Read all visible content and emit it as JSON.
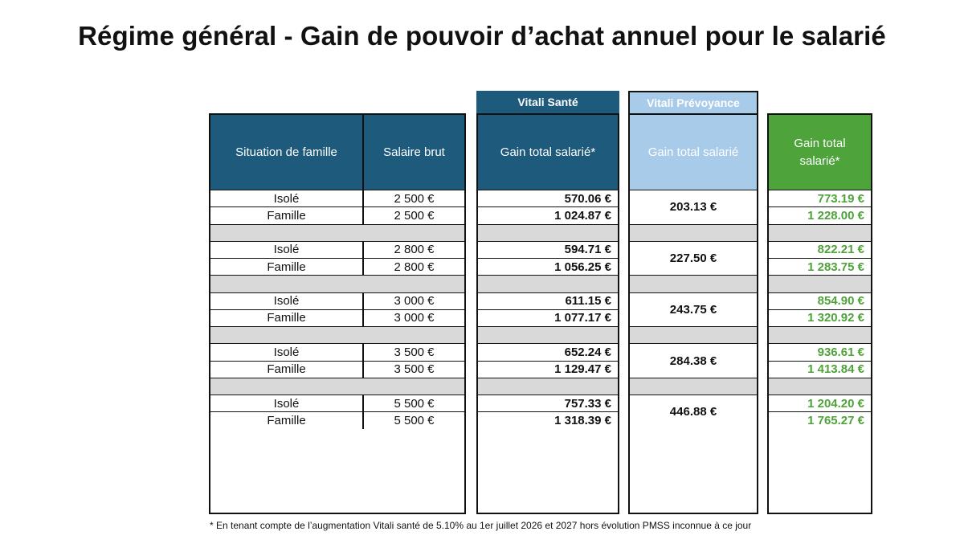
{
  "title": "Régime général - Gain de pouvoir d’achat annuel pour le salarié",
  "group_labels": {
    "sante": "Vitali Santé",
    "prevoyance": "Vitali Prévoyance"
  },
  "headers": {
    "situation": "Situation de famille",
    "salaire": "Salaire brut",
    "gain_sante": "Gain total salarié*",
    "gain_prevoyance": "Gain total salarié",
    "gain_total": "Gain total salarié*"
  },
  "colors": {
    "dark_blue": "#1d5a7c",
    "light_blue": "#a8cbea",
    "green": "#4ea33a",
    "separator_gray": "#d9d9d9"
  },
  "groups": [
    {
      "salaire": "2 500 €",
      "prevoyance": "203.13 €",
      "rows": [
        {
          "situation": "Isolé",
          "sante": "570.06 €",
          "total": "773.19 €"
        },
        {
          "situation": "Famille",
          "sante": "1 024.87 €",
          "total": "1 228.00 €"
        }
      ]
    },
    {
      "salaire": "2 800 €",
      "prevoyance": "227.50 €",
      "rows": [
        {
          "situation": "Isolé",
          "sante": "594.71 €",
          "total": "822.21 €"
        },
        {
          "situation": "Famille",
          "sante": "1 056.25 €",
          "total": "1 283.75 €"
        }
      ]
    },
    {
      "salaire": "3 000 €",
      "prevoyance": "243.75 €",
      "rows": [
        {
          "situation": "Isolé",
          "sante": "611.15 €",
          "total": "854.90 €"
        },
        {
          "situation": "Famille",
          "sante": "1 077.17 €",
          "total": "1 320.92 €"
        }
      ]
    },
    {
      "salaire": "3 500 €",
      "prevoyance": "284.38 €",
      "rows": [
        {
          "situation": "Isolé",
          "sante": "652.24 €",
          "total": "936.61 €"
        },
        {
          "situation": "Famille",
          "sante": "1 129.47 €",
          "total": "1 413.84 €"
        }
      ]
    },
    {
      "salaire": "5 500 €",
      "prevoyance": "446.88 €",
      "rows": [
        {
          "situation": "Isolé",
          "sante": "757.33 €",
          "total": "1 204.20 €"
        },
        {
          "situation": "Famille",
          "sante": "1 318.39 €",
          "total": "1 765.27 €"
        }
      ]
    }
  ],
  "footnote": "* En tenant compte de l’augmentation Vitali santé de 5.10% au 1er juillet 2026 et 2027 hors évolution PMSS inconnue à ce jour"
}
